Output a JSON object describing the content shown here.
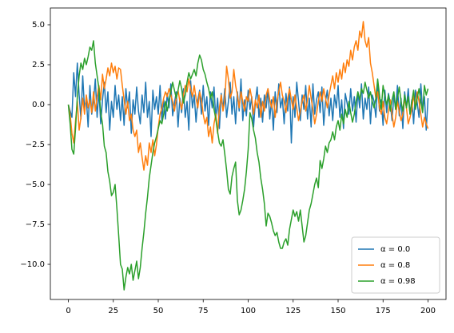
{
  "chart_data": {
    "type": "line",
    "x": [
      0,
      1,
      2,
      3,
      4,
      5,
      6,
      7,
      8,
      9,
      10,
      11,
      12,
      13,
      14,
      15,
      16,
      17,
      18,
      19,
      20,
      21,
      22,
      23,
      24,
      25,
      26,
      27,
      28,
      29,
      30,
      31,
      32,
      33,
      34,
      35,
      36,
      37,
      38,
      39,
      40,
      41,
      42,
      43,
      44,
      45,
      46,
      47,
      48,
      49,
      50,
      51,
      52,
      53,
      54,
      55,
      56,
      57,
      58,
      59,
      60,
      61,
      62,
      63,
      64,
      65,
      66,
      67,
      68,
      69,
      70,
      71,
      72,
      73,
      74,
      75,
      76,
      77,
      78,
      79,
      80,
      81,
      82,
      83,
      84,
      85,
      86,
      87,
      88,
      89,
      90,
      91,
      92,
      93,
      94,
      95,
      96,
      97,
      98,
      99,
      100,
      101,
      102,
      103,
      104,
      105,
      106,
      107,
      108,
      109,
      110,
      111,
      112,
      113,
      114,
      115,
      116,
      117,
      118,
      119,
      120,
      121,
      122,
      123,
      124,
      125,
      126,
      127,
      128,
      129,
      130,
      131,
      132,
      133,
      134,
      135,
      136,
      137,
      138,
      139,
      140,
      141,
      142,
      143,
      144,
      145,
      146,
      147,
      148,
      149,
      150,
      151,
      152,
      153,
      154,
      155,
      156,
      157,
      158,
      159,
      160,
      161,
      162,
      163,
      164,
      165,
      166,
      167,
      168,
      169,
      170,
      171,
      172,
      173,
      174,
      175,
      176,
      177,
      178,
      179,
      180,
      181,
      182,
      183,
      184,
      185,
      186,
      187,
      188,
      189,
      190,
      191,
      192,
      193,
      194,
      195,
      196,
      197,
      198,
      199,
      200
    ],
    "series": [
      {
        "name": "α = 0.0",
        "color": "#1f77b4",
        "values": [
          0,
          -0.4,
          -0.8,
          2.0,
          0.5,
          2.6,
          0.6,
          -0.9,
          1.8,
          -0.3,
          0.4,
          -1.4,
          1.2,
          -0.6,
          0.2,
          1.6,
          -0.8,
          0.9,
          -1.2,
          0.3,
          1.4,
          -0.5,
          0.8,
          -1.6,
          0.2,
          -0.8,
          1.2,
          -0.3,
          0.6,
          -1.0,
          0.5,
          -1.3,
          1.0,
          -0.2,
          0.8,
          -1.8,
          0.3,
          -0.6,
          1.1,
          -0.4,
          -1.2,
          0.6,
          -0.5,
          1.4,
          -0.8,
          0.2,
          -2.0,
          0.9,
          -0.3,
          0.5,
          -0.6,
          1.2,
          -1.0,
          0.3,
          -0.9,
          0.7,
          -0.2,
          1.3,
          -0.7,
          0.1,
          0.8,
          -1.4,
          0.4,
          -0.5,
          1.0,
          -0.8,
          0.2,
          -1.6,
          1.5,
          -0.2,
          0.6,
          -1.1,
          0.3,
          0.9,
          -0.6,
          1.2,
          -0.4,
          0.5,
          -1.3,
          0.8,
          -0.2,
          1.1,
          -0.9,
          0.4,
          -1.5,
          0.7,
          -0.3,
          1.0,
          -0.8,
          0.2,
          1.4,
          -0.6,
          0.5,
          -1.2,
          0.8,
          -0.4,
          1.6,
          -1.0,
          0.3,
          -0.7,
          0.9,
          -0.3,
          0.5,
          -1.4,
          0.2,
          1.1,
          -0.8,
          0.4,
          -1.1,
          0.6,
          -0.2,
          1.0,
          -0.9,
          0.3,
          -1.6,
          0.8,
          -0.5,
          1.3,
          -0.2,
          0.4,
          -1.2,
          0.7,
          -0.4,
          1.1,
          -2.4,
          0.5,
          -0.8,
          1.4,
          0.2,
          -1.0,
          0.6,
          -0.3,
          1.2,
          -0.9,
          0.4,
          -1.4,
          1.3,
          -0.6,
          0.3,
          0.8,
          -0.5,
          1.1,
          -1.3,
          0.2,
          0.9,
          -0.7,
          0.4,
          -1.0,
          0.6,
          -0.2,
          1.2,
          -0.8,
          0.3,
          -1.5,
          0.7,
          0.1,
          -0.6,
          1.0,
          -0.4,
          0.5,
          -1.1,
          0.8,
          -0.2,
          1.3,
          -0.9,
          0.4,
          -0.3,
          1.1,
          -1.2,
          0.6,
          0.2,
          -0.8,
          1.4,
          -0.4,
          0.3,
          -1.3,
          0.9,
          -0.5,
          0.7,
          0.1,
          -1.0,
          0.6,
          -0.3,
          1.2,
          -0.7,
          0.4,
          -1.5,
          0.8,
          -0.2,
          1.0,
          -0.6,
          0.3,
          -1.2,
          0.9,
          0.1,
          -0.8,
          1.3,
          -0.4,
          0.5,
          -1.6,
          0.4
        ]
      },
      {
        "name": "α = 0.8",
        "color": "#ff7f0e",
        "values": [
          0,
          -0.6,
          -1.8,
          -2.4,
          -1.0,
          0.2,
          -1.6,
          -0.8,
          0.4,
          -0.6,
          0.6,
          -0.2,
          0.3,
          -0.5,
          0.8,
          -0.4,
          0.5,
          1.2,
          0.3,
          1.9,
          1.0,
          1.6,
          2.3,
          1.8,
          2.6,
          2.0,
          2.4,
          1.6,
          2.3,
          2.2,
          1.2,
          0.3,
          -0.6,
          0.2,
          -1.0,
          -0.6,
          -1.6,
          -2.0,
          -1.6,
          -3.0,
          -2.4,
          -3.3,
          -4.1,
          -3.2,
          -3.8,
          -2.4,
          -3.0,
          -2.2,
          -3.2,
          -2.5,
          -1.4,
          -0.6,
          -0.2,
          0.4,
          0.8,
          0.5,
          1.0,
          0.6,
          0.2,
          -0.4,
          0.4,
          0.9,
          0.2,
          -0.3,
          0.6,
          1.2,
          0.8,
          1.6,
          1.0,
          0.5,
          1.2,
          0.4,
          -0.2,
          0.8,
          0.3,
          -0.6,
          -1.2,
          -0.8,
          -2.0,
          -1.4,
          -2.4,
          -1.2,
          -0.6,
          -1.8,
          -0.2,
          0.6,
          -0.4,
          0.2,
          2.4,
          1.6,
          0.4,
          0.8,
          2.2,
          1.2,
          0.6,
          -0.2,
          0.8,
          0.2,
          -0.4,
          0.5,
          0.2,
          1.0,
          0.4,
          -0.6,
          0.3,
          -0.2,
          0.6,
          -0.8,
          0.2,
          -0.4,
          0.6,
          1.0,
          0.3,
          -0.2,
          0.5,
          -0.8,
          0.2,
          0.8,
          1.4,
          0.6,
          0.2,
          -0.5,
          0.4,
          1.0,
          0.3,
          -0.3,
          0.6,
          -0.2,
          -1.0,
          -0.4,
          0.2,
          0.6,
          -0.4,
          0.3,
          1.2,
          0.4,
          -0.3,
          -1.2,
          -0.6,
          0.2,
          0.8,
          0.2,
          1.0,
          0.4,
          -0.2,
          0.6,
          1.2,
          1.8,
          1.0,
          2.0,
          1.4,
          2.2,
          1.6,
          2.6,
          2.0,
          2.8,
          2.4,
          3.4,
          2.8,
          3.6,
          4.0,
          3.4,
          4.6,
          4.2,
          5.2,
          4.0,
          3.6,
          4.2,
          2.6,
          2.0,
          1.2,
          0.4,
          0.8,
          -0.2,
          -0.6,
          0.2,
          -0.8,
          -1.2,
          -0.4,
          0.3,
          -0.6,
          -1.4,
          -0.8,
          0.2,
          -0.4,
          -1.0,
          -0.6,
          0.4,
          -0.2,
          -1.2,
          -0.8,
          -0.3,
          0.6,
          -0.2,
          0.8,
          0.2,
          -0.6,
          -1.4,
          -0.8,
          -1.2,
          -1.5
        ]
      },
      {
        "name": "α = 0.98",
        "color": "#2ca02c",
        "values": [
          0,
          -1.2,
          -2.8,
          -3.1,
          -1.5,
          0.5,
          1.8,
          2.6,
          2.2,
          2.9,
          2.5,
          3.0,
          3.6,
          3.4,
          4.0,
          2.6,
          1.8,
          1.0,
          -0.5,
          -1.2,
          -2.6,
          -3.0,
          -4.2,
          -4.8,
          -5.7,
          -5.5,
          -5.0,
          -6.5,
          -8.2,
          -10.0,
          -10.3,
          -11.6,
          -10.8,
          -10.2,
          -10.6,
          -10.0,
          -11.0,
          -10.4,
          -9.8,
          -10.9,
          -10.2,
          -9.0,
          -8.0,
          -6.8,
          -5.8,
          -4.6,
          -3.8,
          -3.0,
          -2.4,
          -2.0,
          -1.5,
          -1.0,
          -1.2,
          -0.6,
          0.2,
          -0.4,
          0.3,
          0.8,
          1.4,
          0.9,
          0.4,
          0.9,
          1.5,
          1.0,
          0.1,
          0.6,
          1.4,
          2.0,
          1.6,
          1.9,
          2.2,
          1.8,
          2.6,
          3.1,
          2.8,
          2.2,
          1.9,
          1.4,
          1.0,
          0.4,
          0.8,
          -0.3,
          -0.9,
          -1.7,
          -2.4,
          -2.6,
          -2.2,
          -3.1,
          -4.1,
          -5.3,
          -5.6,
          -4.5,
          -4.0,
          -3.6,
          -6.0,
          -6.9,
          -6.6,
          -6.0,
          -5.3,
          -4.2,
          -2.8,
          -0.5,
          -0.9,
          -1.6,
          -2.1,
          -3.0,
          -3.6,
          -4.6,
          -5.3,
          -6.2,
          -7.6,
          -6.8,
          -7.0,
          -7.4,
          -7.9,
          -8.2,
          -8.0,
          -8.6,
          -9.0,
          -9.0,
          -8.6,
          -8.4,
          -8.8,
          -7.8,
          -7.2,
          -6.6,
          -7.0,
          -6.7,
          -7.3,
          -6.6,
          -7.6,
          -8.6,
          -8.2,
          -7.4,
          -6.6,
          -6.2,
          -5.6,
          -5.0,
          -4.6,
          -5.2,
          -3.5,
          -4.0,
          -3.4,
          -2.6,
          -3.0,
          -2.4,
          -2.2,
          -1.7,
          -2.2,
          -1.4,
          -1.0,
          -1.6,
          -0.6,
          -1.2,
          -0.3,
          -0.8,
          0.2,
          -0.5,
          -1.1,
          -0.6,
          0.2,
          0.8,
          0.3,
          1.0,
          0.7,
          1.4,
          0.9,
          0.4,
          0.8,
          0.2,
          -0.2,
          0.4,
          1.6,
          0.6,
          -0.3,
          1.2,
          0.5,
          0.0,
          0.6,
          -0.4,
          0.3,
          0.8,
          -0.3,
          0.4,
          1.1,
          0.2,
          -0.4,
          0.6,
          -0.2,
          0.5,
          -0.6,
          0.2,
          0.9,
          -0.3,
          0.4,
          1.0,
          0.2,
          -0.5,
          1.2,
          0.6,
          1.0
        ]
      }
    ],
    "xlim": [
      -10,
      210
    ],
    "xticks": [
      0,
      25,
      50,
      75,
      100,
      125,
      150,
      175,
      200
    ],
    "ylim": [
      -12.2,
      6.05
    ],
    "yticks": [
      {
        "value": 5,
        "label": "5.0"
      },
      {
        "value": 2.5,
        "label": "2.5"
      },
      {
        "value": 0,
        "label": "0.0"
      },
      {
        "value": -2.5,
        "label": "−2.5"
      },
      {
        "value": -5,
        "label": "−5.0"
      },
      {
        "value": -7.5,
        "label": "−7.5"
      },
      {
        "value": -10,
        "label": "−10.0"
      }
    ],
    "legend": "lower right"
  }
}
